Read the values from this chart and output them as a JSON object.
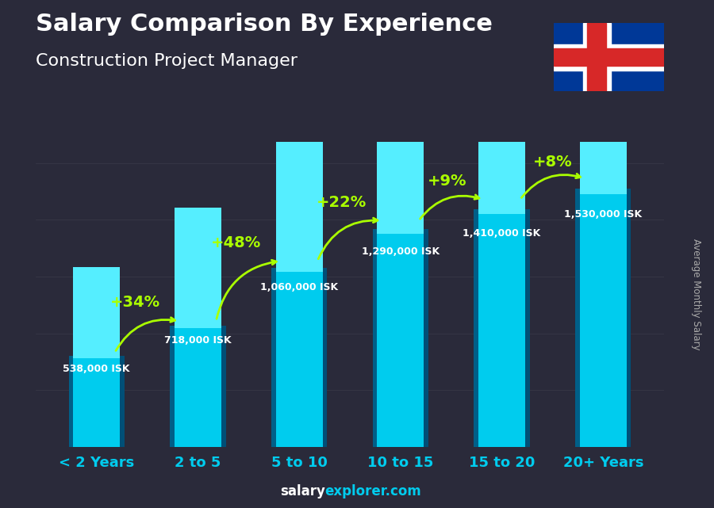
{
  "title": "Salary Comparison By Experience",
  "subtitle": "Construction Project Manager",
  "ylabel": "Average Monthly Salary",
  "categories": [
    "< 2 Years",
    "2 to 5",
    "5 to 10",
    "10 to 15",
    "15 to 20",
    "20+ Years"
  ],
  "values": [
    538000,
    718000,
    1060000,
    1290000,
    1410000,
    1530000
  ],
  "labels": [
    "538,000 ISK",
    "718,000 ISK",
    "1,060,000 ISK",
    "1,290,000 ISK",
    "1,410,000 ISK",
    "1,530,000 ISK"
  ],
  "pct_labels": [
    "+34%",
    "+48%",
    "+22%",
    "+9%",
    "+8%"
  ],
  "bar_face_color": "#00ccee",
  "bar_left_color": "#005f88",
  "bar_right_color": "#004f77",
  "bar_top_color": "#55eeff",
  "bg_color": "#2a2a3a",
  "title_color": "#ffffff",
  "subtitle_color": "#ffffff",
  "label_color": "#ffffff",
  "pct_color": "#aaff00",
  "tick_color": "#00ccee",
  "website_salary_color": "#ffffff",
  "website_explorer_color": "#00ccee",
  "ylabel_color": "#aaaaaa",
  "flag_blue": "#003897",
  "flag_red": "#d72828",
  "flag_white": "#ffffff"
}
